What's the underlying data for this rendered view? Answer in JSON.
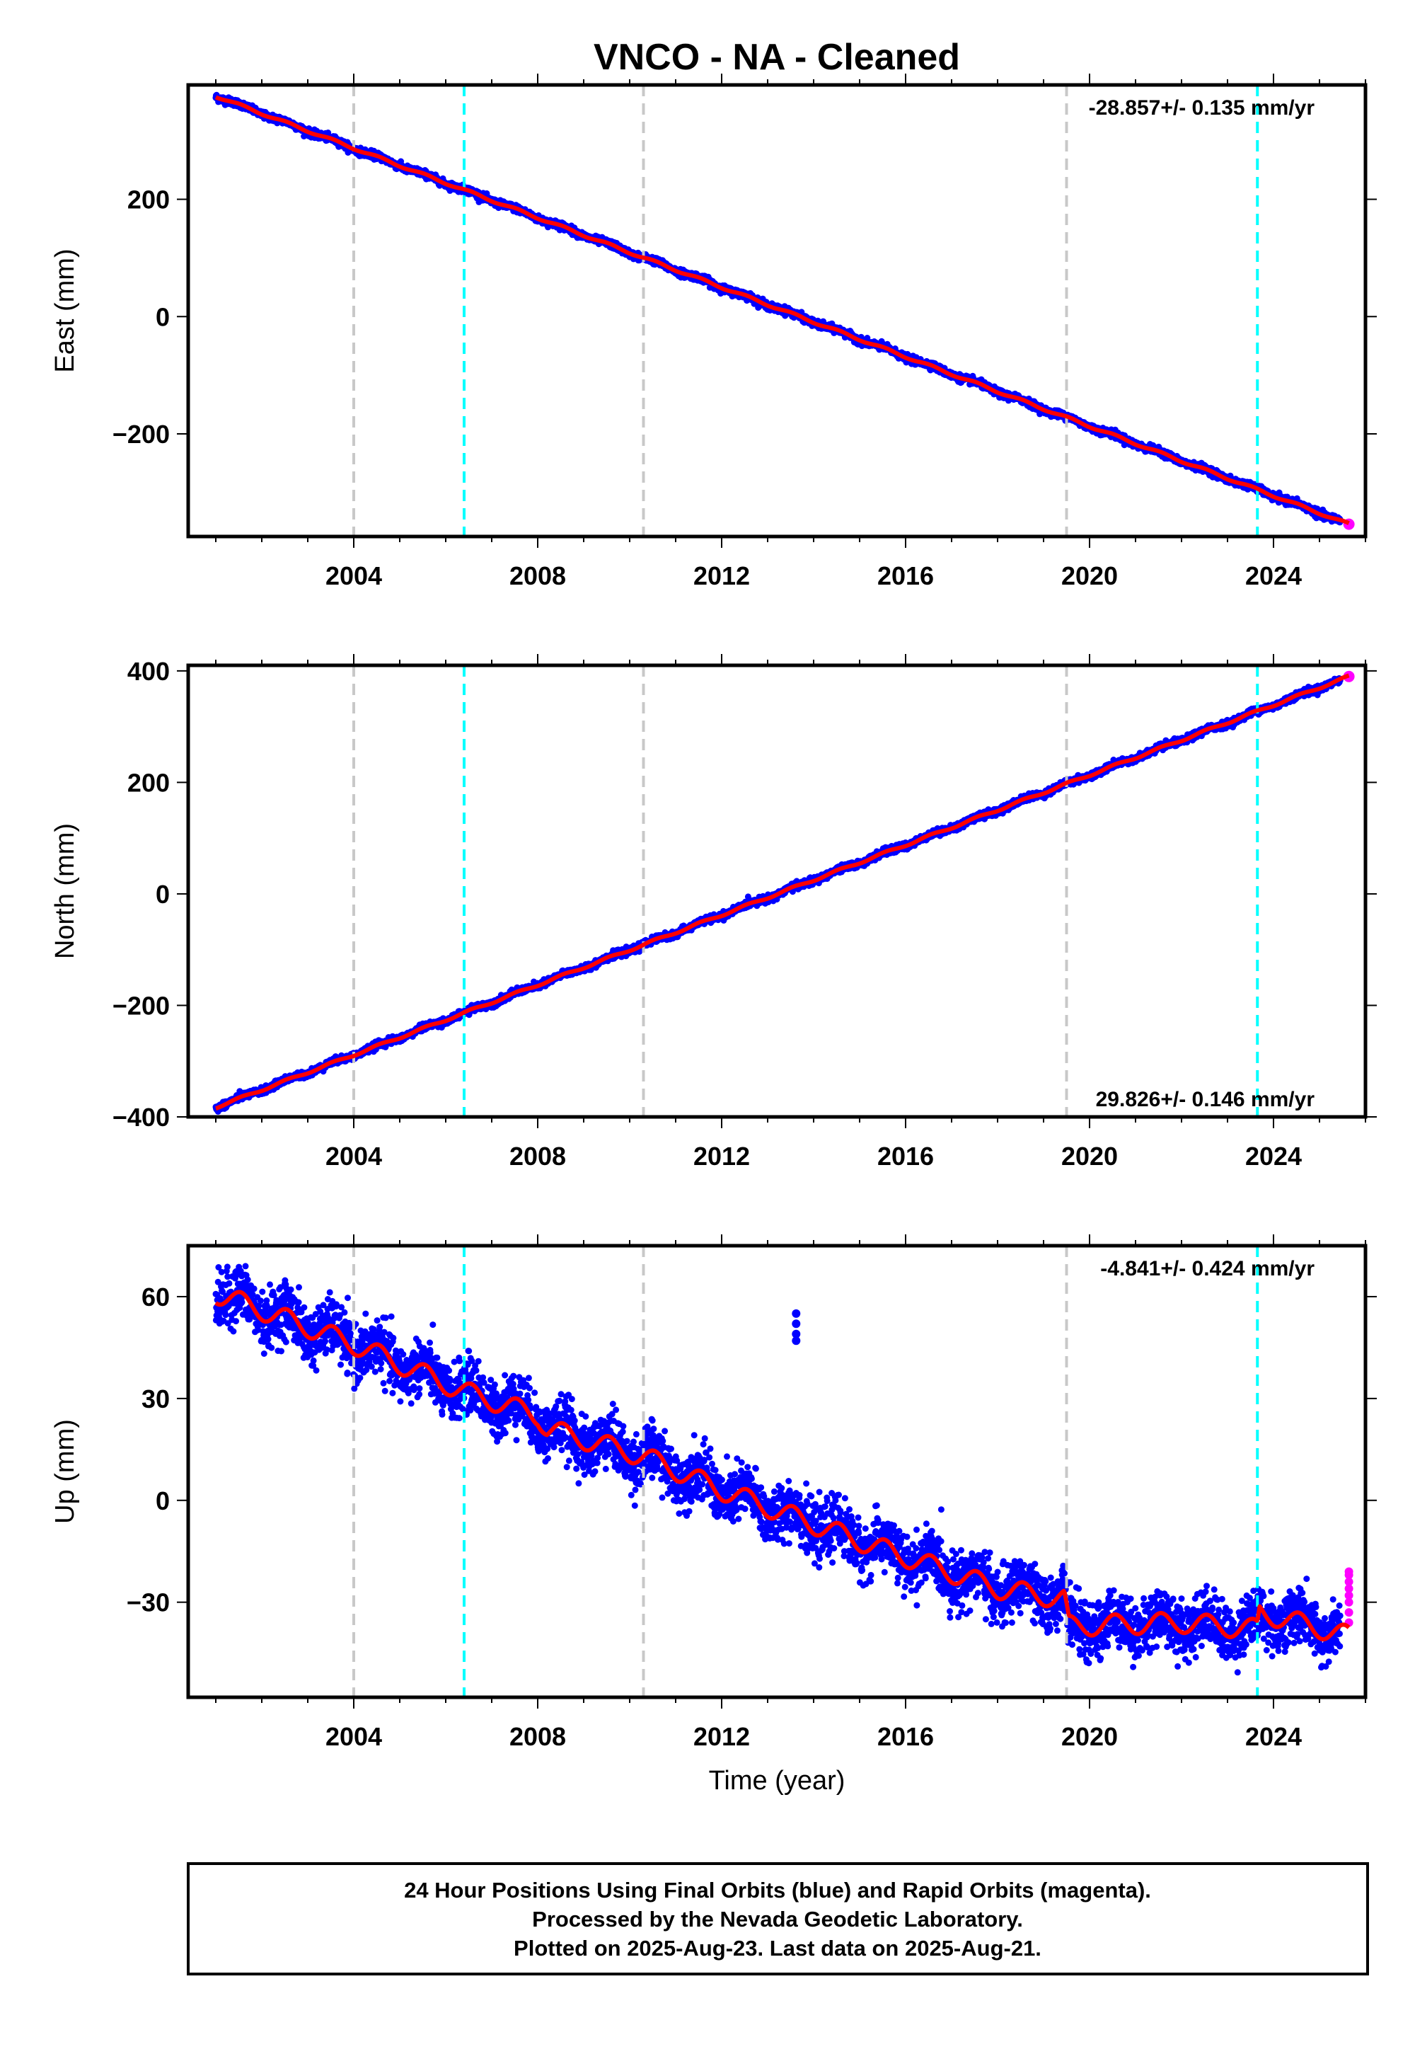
{
  "title": "VNCO  - NA - Cleaned",
  "colors": {
    "final_orbits": "#0000ff",
    "rapid_orbits": "#ff00ff",
    "model": "#ff0000",
    "equipment_change": "#c8c8c8",
    "earthquake": "#00ffff",
    "frame": "#000000"
  },
  "footer": {
    "line1": "24 Hour Positions Using Final Orbits (blue) and Rapid Orbits (magenta).",
    "line2": "Processed by the Nevada Geodetic Laboratory.",
    "line3": "Plotted on 2025-Aug-23. Last data on 2025-Aug-21."
  },
  "chart_data": [
    {
      "type": "scatter",
      "component": "East",
      "ylabel": "East (mm)",
      "xlabel": "",
      "rate_label": "-28.857+/- 0.135 mm/yr",
      "xlim": [
        2000.4,
        2026.0
      ],
      "ylim": [
        -375,
        395
      ],
      "x_ticks": [
        2004,
        2008,
        2012,
        2016,
        2020,
        2024
      ],
      "y_ticks": [
        -200,
        0,
        200
      ],
      "grid": false,
      "vlines_gray": [
        2004.0,
        2010.3,
        2019.5
      ],
      "vlines_cyan": [
        2006.4,
        2023.65
      ],
      "start": [
        2001.0,
        376
      ],
      "end": [
        2025.64,
        -354
      ],
      "scatter_mm": 3,
      "seasonal_mm": 2,
      "rapid_start": 2025.45
    },
    {
      "type": "scatter",
      "component": "North",
      "ylabel": "North (mm)",
      "xlabel": "",
      "rate_label": "29.826+/- 0.146 mm/yr",
      "xlim": [
        2000.4,
        2026.0
      ],
      "ylim": [
        -400,
        410
      ],
      "x_ticks": [
        2004,
        2008,
        2012,
        2016,
        2020,
        2024
      ],
      "y_ticks": [
        -400,
        -200,
        0,
        200,
        400
      ],
      "grid": false,
      "vlines_gray": [
        2004.0,
        2010.3,
        2019.5
      ],
      "vlines_cyan": [
        2006.4,
        2023.65
      ],
      "start": [
        2001.0,
        -383
      ],
      "end": [
        2025.64,
        390
      ],
      "scatter_mm": 3,
      "seasonal_mm": 2,
      "rapid_start": 2025.45
    },
    {
      "type": "scatter",
      "component": "Up",
      "ylabel": "Up (mm)",
      "xlabel": "Time (year)",
      "rate_label": "-4.841+/- 0.424 mm/yr",
      "xlim": [
        2000.4,
        2026.0
      ],
      "ylim": [
        -58,
        75
      ],
      "x_ticks": [
        2004,
        2008,
        2012,
        2016,
        2020,
        2024
      ],
      "y_ticks": [
        -30,
        0,
        30,
        60
      ],
      "grid": false,
      "vlines_gray": [
        2004.0,
        2010.3,
        2019.5
      ],
      "vlines_cyan": [
        2006.4,
        2023.65
      ],
      "trend_knots": [
        [
          2001.0,
          61
        ],
        [
          2004.0,
          46
        ],
        [
          2006.4,
          32
        ],
        [
          2008.0,
          25
        ],
        [
          2008.2,
          21
        ],
        [
          2010.3,
          13
        ],
        [
          2012.0,
          3
        ],
        [
          2015.0,
          -12
        ],
        [
          2018.0,
          -26
        ],
        [
          2019.45,
          -29
        ],
        [
          2019.55,
          -37
        ],
        [
          2022.0,
          -36
        ],
        [
          2023.65,
          -38
        ],
        [
          2023.7,
          -33
        ],
        [
          2025.64,
          -40
        ]
      ],
      "scatter_mm": 4,
      "seasonal_mm": 3,
      "outliers": [
        [
          2013.62,
          55
        ],
        [
          2013.62,
          52
        ],
        [
          2013.62,
          49
        ],
        [
          2013.62,
          47
        ]
      ],
      "rapid_start": 2025.45,
      "rapid_values": [
        -36,
        -33,
        -30,
        -28,
        -26,
        -24,
        -22,
        -21
      ]
    }
  ]
}
